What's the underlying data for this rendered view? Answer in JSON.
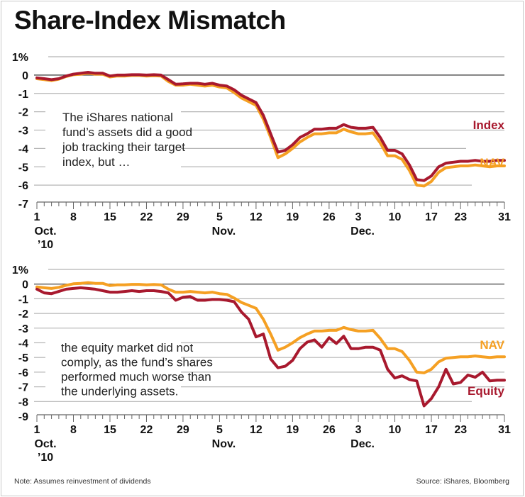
{
  "title": "Share-Index Mismatch",
  "note": "Note: Assumes reinvestment of dividends",
  "source": "Source: iShares, Bloomberg",
  "colors": {
    "index": "#a8192e",
    "nav": "#f5a023",
    "equity": "#a8192e",
    "grid": "#b5b5b5",
    "zero": "#555555",
    "text": "#111111"
  },
  "chart_data": [
    {
      "type": "line",
      "title": "",
      "annotation": [
        "The iShares national",
        "fund’s assets did a good",
        "job tracking their target",
        "index, but …"
      ],
      "ylabel": "",
      "ylim": [
        -7,
        1
      ],
      "yticks": [
        "1%",
        "0",
        "-1",
        "-2",
        "-3",
        "-4",
        "-5",
        "-6",
        "-7"
      ],
      "grid": true,
      "x_ticks": [
        {
          "label": "1",
          "sub": [
            "Oct.",
            "’10"
          ],
          "day": 0
        },
        {
          "label": "8",
          "day": 5
        },
        {
          "label": "15",
          "day": 10
        },
        {
          "label": "22",
          "day": 15
        },
        {
          "label": "29",
          "day": 20
        },
        {
          "label": "5",
          "sub": [
            "Nov."
          ],
          "day": 25
        },
        {
          "label": "12",
          "day": 30
        },
        {
          "label": "19",
          "day": 35
        },
        {
          "label": "26",
          "day": 40
        },
        {
          "label": "3",
          "sub": [
            "Dec."
          ],
          "day": 44
        },
        {
          "label": "10",
          "day": 49
        },
        {
          "label": "17",
          "day": 54
        },
        {
          "label": "23",
          "day": 58
        },
        {
          "label": "31",
          "day": 64
        }
      ],
      "n_days": 65,
      "series": [
        {
          "name": "Index",
          "color_key": "index",
          "values": [
            -0.15,
            -0.2,
            -0.25,
            -0.2,
            -0.05,
            0.05,
            0.1,
            0.15,
            0.1,
            0.1,
            -0.05,
            0.0,
            0.0,
            0.02,
            0.02,
            0.0,
            0.02,
            0.0,
            -0.25,
            -0.5,
            -0.48,
            -0.45,
            -0.45,
            -0.5,
            -0.45,
            -0.55,
            -0.6,
            -0.8,
            -1.1,
            -1.3,
            -1.5,
            -2.2,
            -3.2,
            -4.2,
            -4.1,
            -3.8,
            -3.4,
            -3.2,
            -2.95,
            -2.95,
            -2.9,
            -2.9,
            -2.7,
            -2.85,
            -2.9,
            -2.9,
            -2.85,
            -3.4,
            -4.1,
            -4.1,
            -4.3,
            -4.9,
            -5.7,
            -5.75,
            -5.5,
            -5.0,
            -4.8,
            -4.75,
            -4.7,
            -4.7,
            -4.65,
            -4.7,
            -4.7,
            -4.65,
            -4.65
          ]
        },
        {
          "name": "NAV",
          "color_key": "nav",
          "values": [
            -0.2,
            -0.25,
            -0.3,
            -0.22,
            -0.08,
            0.02,
            0.05,
            0.1,
            0.05,
            0.05,
            -0.1,
            -0.05,
            -0.05,
            -0.02,
            -0.02,
            -0.05,
            -0.03,
            -0.05,
            -0.35,
            -0.55,
            -0.55,
            -0.5,
            -0.55,
            -0.6,
            -0.55,
            -0.65,
            -0.7,
            -0.95,
            -1.25,
            -1.45,
            -1.65,
            -2.4,
            -3.4,
            -4.5,
            -4.3,
            -4.0,
            -3.65,
            -3.4,
            -3.2,
            -3.2,
            -3.15,
            -3.15,
            -2.95,
            -3.1,
            -3.2,
            -3.2,
            -3.15,
            -3.7,
            -4.4,
            -4.4,
            -4.6,
            -5.2,
            -6.0,
            -6.05,
            -5.8,
            -5.3,
            -5.05,
            -5.0,
            -4.95,
            -4.95,
            -4.9,
            -4.95,
            -5.0,
            -4.95,
            -4.95
          ]
        }
      ],
      "legend": [
        {
          "label": "Index",
          "color_key": "index",
          "position": "right"
        },
        {
          "label": "NAV",
          "color_key": "nav",
          "position": "right"
        }
      ]
    },
    {
      "type": "line",
      "title": "",
      "annotation": [
        "the equity market did not",
        "comply, as the fund’s shares",
        "performed much worse than",
        "the underlying assets."
      ],
      "ylabel": "",
      "ylim": [
        -9,
        1
      ],
      "yticks": [
        "1%",
        "0",
        "-1",
        "-2",
        "-3",
        "-4",
        "-5",
        "-6",
        "-7",
        "-8",
        "-9"
      ],
      "grid": true,
      "x_ticks": [
        {
          "label": "1",
          "sub": [
            "Oct.",
            "’10"
          ],
          "day": 0
        },
        {
          "label": "8",
          "day": 5
        },
        {
          "label": "15",
          "day": 10
        },
        {
          "label": "22",
          "day": 15
        },
        {
          "label": "29",
          "day": 20
        },
        {
          "label": "5",
          "sub": [
            "Nov."
          ],
          "day": 25
        },
        {
          "label": "12",
          "day": 30
        },
        {
          "label": "19",
          "day": 35
        },
        {
          "label": "26",
          "day": 40
        },
        {
          "label": "3",
          "sub": [
            "Dec."
          ],
          "day": 44
        },
        {
          "label": "10",
          "day": 49
        },
        {
          "label": "17",
          "day": 54
        },
        {
          "label": "23",
          "day": 58
        },
        {
          "label": "31",
          "day": 64
        }
      ],
      "n_days": 65,
      "series": [
        {
          "name": "NAV",
          "color_key": "nav",
          "values": [
            -0.2,
            -0.25,
            -0.3,
            -0.22,
            -0.08,
            0.02,
            0.05,
            0.1,
            0.05,
            0.05,
            -0.1,
            -0.05,
            -0.05,
            -0.02,
            -0.02,
            -0.05,
            -0.03,
            -0.05,
            -0.35,
            -0.55,
            -0.55,
            -0.5,
            -0.55,
            -0.6,
            -0.55,
            -0.65,
            -0.7,
            -0.95,
            -1.25,
            -1.45,
            -1.65,
            -2.4,
            -3.4,
            -4.5,
            -4.3,
            -4.0,
            -3.65,
            -3.4,
            -3.2,
            -3.2,
            -3.15,
            -3.15,
            -2.95,
            -3.1,
            -3.2,
            -3.2,
            -3.15,
            -3.7,
            -4.4,
            -4.4,
            -4.6,
            -5.2,
            -6.0,
            -6.05,
            -5.8,
            -5.3,
            -5.05,
            -5.0,
            -4.95,
            -4.95,
            -4.9,
            -4.95,
            -5.0,
            -4.95,
            -4.95
          ]
        },
        {
          "name": "Equity",
          "color_key": "equity",
          "values": [
            -0.35,
            -0.6,
            -0.65,
            -0.5,
            -0.35,
            -0.3,
            -0.25,
            -0.3,
            -0.35,
            -0.45,
            -0.55,
            -0.55,
            -0.5,
            -0.45,
            -0.5,
            -0.45,
            -0.45,
            -0.5,
            -0.6,
            -1.1,
            -0.9,
            -0.85,
            -1.1,
            -1.1,
            -1.05,
            -1.05,
            -1.1,
            -1.2,
            -1.9,
            -2.4,
            -3.6,
            -3.4,
            -5.1,
            -5.7,
            -5.6,
            -5.2,
            -4.4,
            -3.95,
            -3.8,
            -4.3,
            -3.65,
            -4.05,
            -3.55,
            -4.4,
            -4.4,
            -4.3,
            -4.3,
            -4.5,
            -5.8,
            -6.4,
            -6.25,
            -6.5,
            -6.6,
            -8.3,
            -7.8,
            -7.0,
            -5.8,
            -6.8,
            -6.7,
            -6.2,
            -6.35,
            -6.0,
            -6.6,
            -6.55,
            -6.55
          ]
        }
      ],
      "legend": [
        {
          "label": "NAV",
          "color_key": "nav",
          "position": "right"
        },
        {
          "label": "Equity",
          "color_key": "equity",
          "position": "right"
        }
      ]
    }
  ]
}
